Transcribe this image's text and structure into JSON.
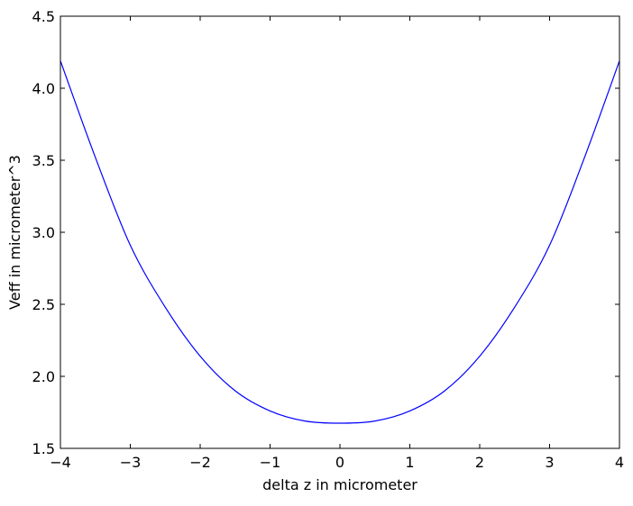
{
  "chart_data": {
    "type": "line",
    "title": "",
    "xlabel": "delta z in micrometer",
    "ylabel": "Veff in micrometer^3",
    "xlim": [
      -4,
      4
    ],
    "ylim": [
      1.5,
      4.5
    ],
    "x_ticks": [
      -4,
      -3,
      -2,
      -1,
      0,
      1,
      2,
      3,
      4
    ],
    "x_tick_labels": [
      "−4",
      "−3",
      "−2",
      "−1",
      "0",
      "1",
      "2",
      "3",
      "4"
    ],
    "y_ticks": [
      1.5,
      2.0,
      2.5,
      3.0,
      3.5,
      4.0,
      4.5
    ],
    "y_tick_labels": [
      "1.5",
      "2.0",
      "2.5",
      "3.0",
      "3.5",
      "4.0",
      "4.5"
    ],
    "grid": false,
    "series": [
      {
        "color": "#0000ff",
        "x": [
          -4.0,
          -3.5,
          -3.0,
          -2.5,
          -2.0,
          -1.5,
          -1.0,
          -0.5,
          0.0,
          0.5,
          1.0,
          1.5,
          2.0,
          2.5,
          3.0,
          3.5,
          4.0
        ],
        "y": [
          4.19,
          3.52,
          2.91,
          2.48,
          2.14,
          1.9,
          1.76,
          1.69,
          1.675,
          1.69,
          1.76,
          1.9,
          2.14,
          2.48,
          2.91,
          3.52,
          4.19
        ]
      }
    ]
  }
}
